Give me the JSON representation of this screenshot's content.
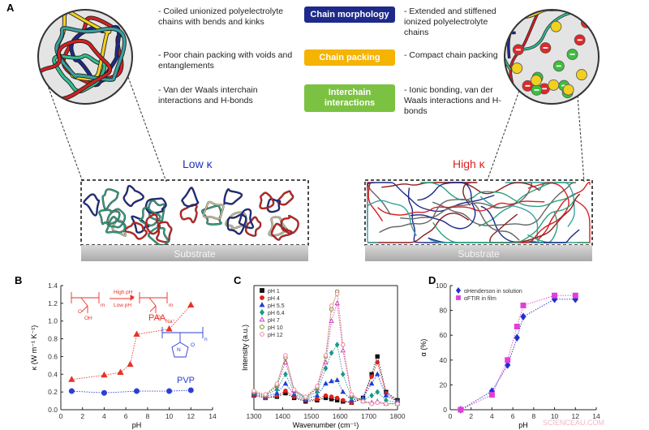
{
  "panel_a": {
    "label": "A",
    "left_points": [
      "- Coiled unionized polyelectrolyte chains with bends and kinks",
      "- Poor chain packing with voids and entanglements",
      "- Van der Waals interchain interactions and H-bonds"
    ],
    "categories": [
      "Chain morphology",
      "Chain packing",
      "Interchain interactions"
    ],
    "right_points": [
      "- Extended and stiffened ionized polyelectrolyte chains",
      "- Compact chain packing",
      "- Ionic bonding, van der Waals interactions and H-bonds"
    ],
    "low_label": "Low κ",
    "high_label": "High κ",
    "substrate_left": "Substrate",
    "substrate_right": "Substrate"
  },
  "chart_data": [
    {
      "type": "line",
      "panel": "B",
      "xlabel": "pH",
      "ylabel": "κ (W m⁻¹ K⁻¹)",
      "xlim": [
        0,
        14
      ],
      "xticks": [
        0,
        2,
        4,
        6,
        8,
        10,
        12,
        14
      ],
      "ylim": [
        0,
        1.4
      ],
      "yticks": [
        {
          "value": 0,
          "label": "0.0"
        },
        0.2,
        0.4,
        0.6,
        0.8,
        {
          "value": 1,
          "label": "1.0"
        },
        1.2,
        1.4
      ],
      "box": false,
      "series": [
        {
          "name": "PAA",
          "color": "#e8322a",
          "marker": "triangle",
          "filled": true,
          "x": [
            1,
            4,
            5.5,
            6.4,
            7,
            10,
            12
          ],
          "values": [
            0.34,
            0.39,
            0.42,
            0.51,
            0.85,
            0.91,
            1.18
          ]
        },
        {
          "name": "PVP",
          "color": "#2a3fd6",
          "marker": "circle",
          "filled": true,
          "x": [
            1,
            4,
            7,
            10,
            12
          ],
          "values": [
            0.21,
            0.19,
            0.21,
            0.21,
            0.22
          ]
        }
      ],
      "annotations": [
        "High pH",
        "Low pH",
        "OH",
        "O",
        "m",
        "O⁻",
        "Na⁺",
        "m",
        "N",
        "O",
        "n"
      ]
    },
    {
      "type": "line",
      "panel": "C",
      "xlabel": "Wavenumber (cm⁻¹)",
      "ylabel": "Intensity (a.u.)",
      "xlim": [
        1300,
        1800
      ],
      "xticks": [
        1300,
        1400,
        1500,
        1600,
        1700,
        1800
      ],
      "ylim": [
        0,
        1.05
      ],
      "box": true,
      "legend": "upper left",
      "x": [
        1300,
        1340,
        1380,
        1410,
        1440,
        1480,
        1520,
        1550,
        1570,
        1590,
        1610,
        1640,
        1680,
        1710,
        1730,
        1760,
        1800
      ],
      "series": [
        {
          "name": "pH 1",
          "color": "#111111",
          "marker": "square",
          "filled": true,
          "values": [
            0.12,
            0.1,
            0.11,
            0.14,
            0.1,
            0.07,
            0.08,
            0.1,
            0.09,
            0.08,
            0.07,
            0.06,
            0.1,
            0.3,
            0.45,
            0.15,
            0.08
          ]
        },
        {
          "name": "pH 4",
          "color": "#e02020",
          "marker": "circle",
          "filled": true,
          "values": [
            0.12,
            0.1,
            0.12,
            0.16,
            0.11,
            0.08,
            0.09,
            0.12,
            0.11,
            0.1,
            0.08,
            0.06,
            0.09,
            0.28,
            0.4,
            0.14,
            0.07
          ]
        },
        {
          "name": "pH 5.5",
          "color": "#1f3fd6",
          "marker": "triangle",
          "filled": true,
          "values": [
            0.13,
            0.11,
            0.14,
            0.22,
            0.13,
            0.09,
            0.12,
            0.22,
            0.24,
            0.25,
            0.15,
            0.08,
            0.1,
            0.22,
            0.3,
            0.12,
            0.07
          ]
        },
        {
          "name": "pH 6.4",
          "color": "#1a9a8a",
          "marker": "diamond",
          "filled": true,
          "values": [
            0.14,
            0.12,
            0.17,
            0.3,
            0.15,
            0.1,
            0.15,
            0.35,
            0.48,
            0.55,
            0.3,
            0.1,
            0.08,
            0.12,
            0.15,
            0.08,
            0.06
          ]
        },
        {
          "name": "pH 7",
          "color": "#d040c8",
          "marker": "triangle",
          "filled": false,
          "values": [
            0.15,
            0.12,
            0.2,
            0.4,
            0.16,
            0.1,
            0.18,
            0.4,
            0.75,
            0.9,
            0.5,
            0.12,
            0.07,
            0.06,
            0.07,
            0.05,
            0.05
          ]
        },
        {
          "name": "pH 10",
          "color": "#7a8a20",
          "marker": "circle",
          "filled": false,
          "values": [
            0.15,
            0.12,
            0.21,
            0.44,
            0.17,
            0.1,
            0.19,
            0.45,
            0.85,
            1.0,
            0.55,
            0.12,
            0.07,
            0.05,
            0.06,
            0.05,
            0.05
          ]
        },
        {
          "name": "pH 12",
          "color": "#f08aa8",
          "marker": "circle",
          "filled": false,
          "values": [
            0.16,
            0.13,
            0.22,
            0.46,
            0.17,
            0.11,
            0.2,
            0.46,
            0.88,
            0.98,
            0.55,
            0.13,
            0.07,
            0.05,
            0.06,
            0.05,
            0.05
          ]
        }
      ]
    },
    {
      "type": "line",
      "panel": "D",
      "xlabel": "pH",
      "ylabel": "α (%)",
      "xlim": [
        0,
        14
      ],
      "xticks": [
        0,
        2,
        4,
        6,
        8,
        10,
        12,
        14
      ],
      "ylim": [
        0,
        100
      ],
      "yticks": [
        0,
        20,
        40,
        60,
        80,
        100
      ],
      "box": false,
      "legend": "upper left",
      "series": [
        {
          "name": "αHenderson in solution",
          "color": "#2030d0",
          "marker": "diamond",
          "filled": true,
          "x": [
            1,
            4,
            5.5,
            6.4,
            7,
            10,
            12
          ],
          "values": [
            0,
            15,
            36,
            58,
            75,
            89,
            89
          ]
        },
        {
          "name": "αFTIR in film",
          "color": "#e040d8",
          "marker": "square",
          "filled": true,
          "x": [
            1,
            4,
            5.5,
            6.4,
            7,
            10,
            12
          ],
          "values": [
            0,
            12,
            40,
            67,
            84,
            92,
            92
          ]
        }
      ]
    }
  ],
  "watermark": "SCIENCEAU.COM"
}
